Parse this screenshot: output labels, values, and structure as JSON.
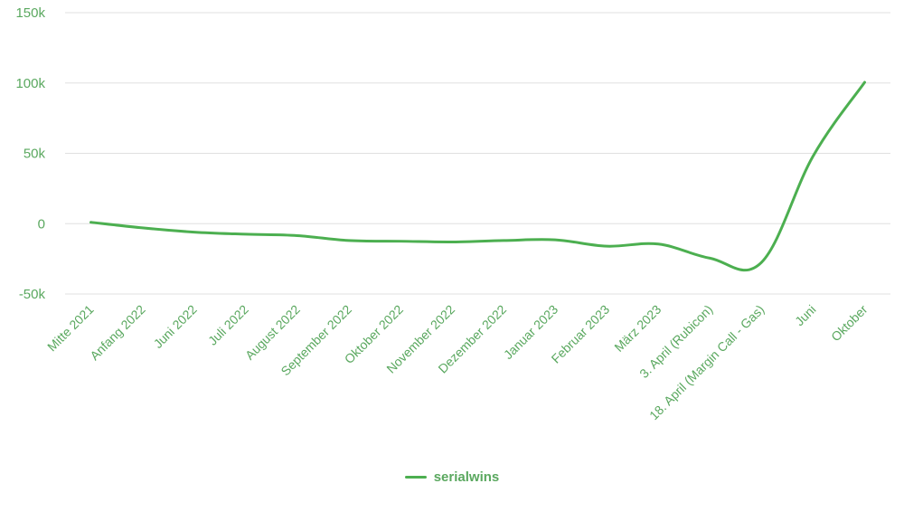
{
  "chart_data": {
    "type": "line",
    "title": "",
    "xlabel": "",
    "ylabel": "",
    "ylim": [
      -50000,
      150000
    ],
    "yticks": [
      -50000,
      0,
      50000,
      100000,
      150000
    ],
    "ytick_labels": [
      "-50k",
      "0",
      "50k",
      "100k",
      "150k"
    ],
    "grid": true,
    "legend_position": "bottom",
    "categories": [
      "Mitte 2021",
      "Anfang 2022",
      "Juni 2022",
      "Juli 2022",
      "August 2022",
      "September 2022",
      "Oktober 2022",
      "November 2022",
      "Dezember 2022",
      "Januar 2023",
      "Februar 2023",
      "März 2023",
      "3. April (Rubicon)",
      "18. April (Margin Call - Gas)",
      "Juni",
      "Oktober"
    ],
    "series": [
      {
        "name": "serialwins",
        "color": "#4caf50",
        "values": [
          1000,
          -3000,
          -6000,
          -7500,
          -8500,
          -12000,
          -12500,
          -13000,
          -12000,
          -11500,
          -16000,
          -14500,
          -24500,
          -27500,
          48000,
          100500
        ]
      }
    ]
  },
  "legend": {
    "items": [
      {
        "label": "serialwins",
        "color": "#4caf50"
      }
    ]
  }
}
